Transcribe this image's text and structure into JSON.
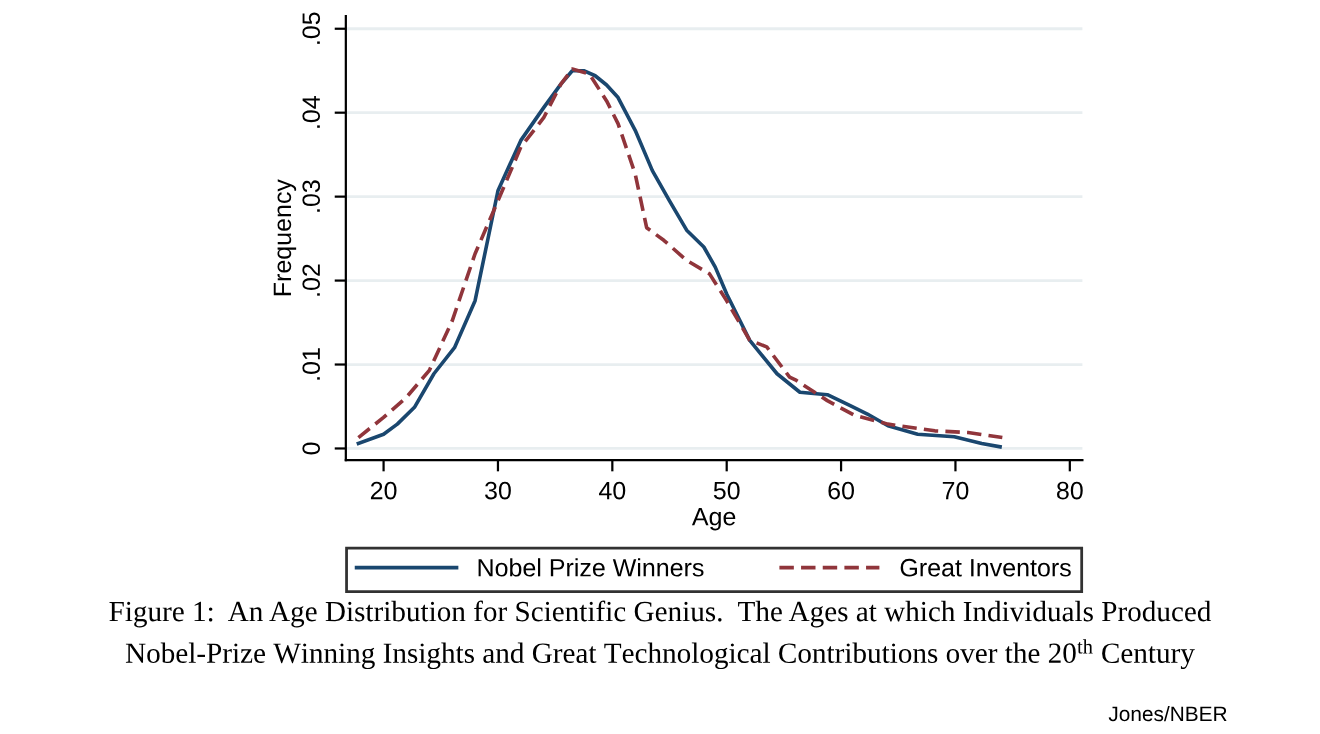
{
  "chart_data": {
    "type": "line",
    "xlabel": "Age",
    "ylabel": "Frequency",
    "xlim": [
      16.7,
      81.1
    ],
    "xticks": [
      20,
      30,
      40,
      50,
      60,
      70,
      80
    ],
    "ylim": [
      -0.0014,
      0.0515
    ],
    "yticks": [
      0,
      {
        "value": 0.01,
        "label": ".01"
      },
      {
        "value": 0.02,
        "label": ".02"
      },
      {
        "value": 0.03,
        "label": ".03"
      },
      {
        "value": 0.04,
        "label": ".04"
      },
      {
        "value": 0.05,
        "label": ".05"
      }
    ],
    "grid": "y",
    "legend": "bottom",
    "series": [
      {
        "name": "Nobel Prize Winners",
        "color": "#1a476f",
        "line_style": "solid",
        "x": [
          17.8,
          20,
          21.2,
          22.7,
          24.4,
          26.2,
          28,
          30,
          32,
          34,
          35.5,
          36.5,
          37.5,
          38.5,
          39.5,
          40.5,
          42,
          43.5,
          45,
          46.5,
          48,
          49,
          50,
          52,
          54.4,
          56.4,
          58.8,
          60.8,
          62.3,
          64.1,
          66.7,
          69.9,
          72.3,
          73.9
        ],
        "values": [
          0.0006,
          0.0017,
          0.0029,
          0.0049,
          0.0089,
          0.012,
          0.0176,
          0.0307,
          0.0367,
          0.0406,
          0.0434,
          0.045,
          0.045,
          0.0444,
          0.0433,
          0.0418,
          0.0379,
          0.0331,
          0.0295,
          0.026,
          0.024,
          0.0216,
          0.0184,
          0.0129,
          0.0089,
          0.0067,
          0.0064,
          0.0051,
          0.0041,
          0.0027,
          0.0017,
          0.0014,
          0.0006,
          0.0002
        ]
      },
      {
        "name": "Great Inventors",
        "color": "#90353b",
        "line_style": "dashed",
        "x": [
          17.8,
          20,
          22,
          24,
          26,
          28,
          30,
          32,
          34,
          35.5,
          36.5,
          38,
          39.5,
          40.5,
          42,
          43,
          44.5,
          46.5,
          48.5,
          50,
          52,
          53.5,
          55.5,
          56.1,
          58.8,
          61.1,
          64.1,
          68.2,
          71.1,
          74.1
        ],
        "values": [
          0.0013,
          0.0037,
          0.0061,
          0.0093,
          0.0152,
          0.0232,
          0.0295,
          0.0359,
          0.0394,
          0.0434,
          0.0452,
          0.0446,
          0.0414,
          0.0387,
          0.0327,
          0.0263,
          0.0248,
          0.0224,
          0.0208,
          0.0176,
          0.0129,
          0.0121,
          0.0085,
          0.0081,
          0.0057,
          0.004,
          0.0029,
          0.0021,
          0.0019,
          0.0013
        ]
      }
    ],
    "annotations": [
      "Figure 1:  An Age Distribution for Scientific Genius.  The Ages at which Individuals Produced\nNobel-Prize Winning Insights and Great Technological Contributions over the 20$^{th}$ Century",
      "Jones/NBER"
    ]
  }
}
